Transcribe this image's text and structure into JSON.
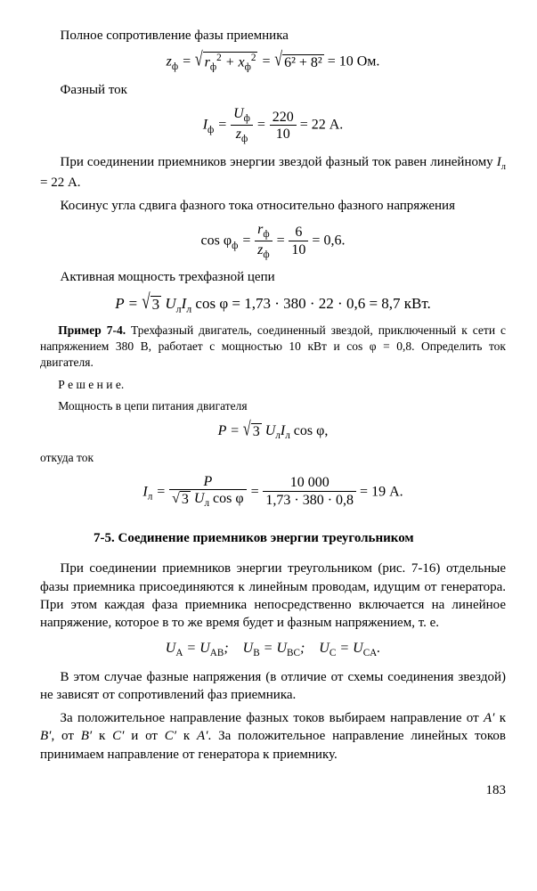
{
  "line1": "Полное сопротивление фазы приемника",
  "eq1_lhs": "z",
  "eq1_sub": "ф",
  "eq1_rad1_inner": "r",
  "eq1_rad1_sub": "ф",
  "eq1_rad1_sup": "2",
  "eq1_plus": " + ",
  "eq1_rad1_x": "x",
  "eq1_rad2": "6² + 8²",
  "eq1_res": " = 10 Ом.",
  "line2": "Фазный ток",
  "eq2_I": "I",
  "eq2_Isub": "ф",
  "eq2_n1": "U",
  "eq2_n1sub": "ф",
  "eq2_d1": "z",
  "eq2_d1sub": "ф",
  "eq2_n2": "220",
  "eq2_d2": "10",
  "eq2_res": " = 22 А.",
  "para1a": "При соединении приемников энергии звездой фазный ток равен линейному ",
  "para1b": " = 22 А.",
  "para2": "Косинус угла сдвига фазного тока относительно фазного напряжения",
  "eq3_lhs": "cos φ",
  "eq3_sub": "ф",
  "eq3_n1": "r",
  "eq3_d1": "z",
  "eq3_n2": "6",
  "eq3_d2": "10",
  "eq3_res": " = 0,6.",
  "line3": "Активная мощность трехфазной цепи",
  "eq4_lhs": "P = ",
  "eq4_sqrt": "3",
  "eq4_UI": " U",
  "eq4_sub_l1": "л",
  "eq4_I": "I",
  "eq4_sub_l2": "л",
  "eq4_cos": " cos φ = 1,73 · 380 · 22 · 0,6 = 8,7 кВт.",
  "example_head": "Пример 7-4.",
  "example_body": " Трехфазный двигатель, соединенный звездой, приключенный к сети с напряжением 380 В, работает с мощностью 10 кВт и cos φ = 0,8. Определить ток двигателя.",
  "reshenie": "Р е ш е н и е.",
  "ex_line": "Мощность в цепи питания двигателя",
  "eq5_lhs": "P = ",
  "eq5_sqrt": "3",
  "eq5_rest": " U",
  "eq5_sub1": "л",
  "eq5_I": "I",
  "eq5_sub2": "л",
  "eq5_end": " cos φ,",
  "otkuda": "откуда ток",
  "eq6_I": "I",
  "eq6_sub": "л",
  "eq6_n1": "P",
  "eq6_d1a": "3",
  "eq6_d1b": " U",
  "eq6_d1sub": "л",
  "eq6_d1c": " cos φ",
  "eq6_n2": "10 000",
  "eq6_d2": "1,73 · 380 · 0,8",
  "eq6_res": " = 19 А.",
  "sec_num": "7-5. ",
  "sec_title": "Соединение приемников энергии треугольником",
  "body1": "При соединении приемников энергии треугольником (рис. 7-16) отдельные фазы приемника присоединяются к линейным проводам, идущим от генератора. При этом каждая фаза приемника непосредственно включается на линейное напряжение, которое в то же время будет и фазным напряжением, т. е.",
  "eq7": "Uₐ = U_AB;    U_B = U_BC;    U_C = U_CA.",
  "body2": "В этом случае фазные напряжения (в отличие от схемы соединения звездой) не зависят от сопротивлений фаз приемника.",
  "body3": "За положительное направление фазных токов выбираем направление от A′ к B′, от B′ к C′ и от C′ к A′. За положительное направление линейных токов принимаем направление от генератора к приемнику.",
  "pageno": "183"
}
